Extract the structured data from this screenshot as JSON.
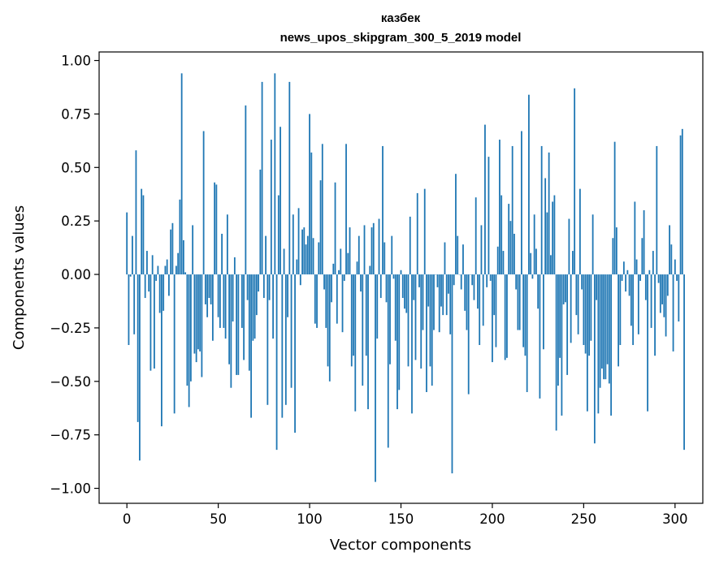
{
  "chart_data": {
    "type": "bar",
    "title": "казбек",
    "subtitle": "news_upos_skipgram_300_5_2019 model",
    "xlabel": "Vector components",
    "ylabel": "Components values",
    "xlim": [
      -15.2,
      315.2
    ],
    "ylim": [
      -1.07,
      1.04
    ],
    "xticks": [
      0,
      50,
      100,
      150,
      200,
      250,
      300
    ],
    "xtick_labels": [
      "0",
      "50",
      "100",
      "150",
      "200",
      "250",
      "300"
    ],
    "yticks": [
      1.0,
      0.75,
      0.5,
      0.25,
      0.0,
      -0.25,
      -0.5,
      -0.75,
      -1.0
    ],
    "ytick_labels": [
      "1.00",
      "0.75",
      "0.50",
      "0.25",
      "0.00",
      "−0.25",
      "−0.50",
      "−0.75",
      "−1.00"
    ],
    "grid": false,
    "bar_color": "#1f77b4",
    "values": [
      0.29,
      -0.33,
      -0.01,
      0.18,
      -0.28,
      0.58,
      -0.69,
      -0.87,
      0.4,
      0.37,
      -0.11,
      0.11,
      -0.08,
      -0.45,
      0.09,
      -0.44,
      -0.03,
      0.04,
      -0.18,
      -0.71,
      -0.17,
      0.04,
      0.07,
      -0.1,
      0.21,
      0.24,
      -0.65,
      0.04,
      0.1,
      0.35,
      0.94,
      0.16,
      0.01,
      -0.52,
      -0.62,
      -0.5,
      0.23,
      -0.37,
      -0.41,
      -0.35,
      -0.36,
      -0.48,
      0.67,
      -0.14,
      -0.2,
      -0.11,
      -0.14,
      -0.31,
      0.43,
      0.42,
      -0.2,
      -0.25,
      0.19,
      -0.25,
      -0.3,
      0.28,
      -0.42,
      -0.53,
      -0.22,
      0.08,
      -0.47,
      -0.47,
      0.0,
      -0.25,
      -0.4,
      0.79,
      -0.12,
      -0.45,
      -0.67,
      -0.31,
      -0.3,
      -0.19,
      -0.08,
      0.49,
      0.9,
      -0.11,
      0.18,
      -0.61,
      -0.12,
      0.63,
      -0.3,
      0.94,
      -0.82,
      0.37,
      0.69,
      -0.67,
      0.12,
      -0.61,
      -0.2,
      0.9,
      -0.53,
      0.28,
      -0.74,
      0.07,
      0.31,
      -0.05,
      0.21,
      0.22,
      0.14,
      0.18,
      0.75,
      0.57,
      0.17,
      -0.23,
      -0.25,
      0.15,
      0.44,
      0.61,
      -0.07,
      -0.25,
      -0.43,
      -0.5,
      -0.13,
      0.05,
      0.43,
      -0.23,
      0.02,
      0.12,
      -0.27,
      -0.03,
      0.61,
      0.1,
      0.22,
      -0.43,
      -0.38,
      -0.64,
      0.06,
      0.18,
      -0.08,
      -0.52,
      0.23,
      -0.38,
      -0.63,
      0.04,
      0.22,
      0.24,
      -0.97,
      -0.3,
      0.26,
      -0.11,
      0.6,
      0.15,
      -0.13,
      -0.81,
      -0.42,
      0.18,
      -0.02,
      -0.31,
      -0.63,
      -0.54,
      0.02,
      -0.11,
      -0.16,
      -0.18,
      -0.43,
      0.27,
      -0.65,
      -0.12,
      -0.4,
      0.38,
      -0.06,
      -0.44,
      -0.26,
      0.4,
      -0.55,
      -0.15,
      -0.43,
      -0.52,
      -0.26,
      0.0,
      -0.06,
      -0.27,
      -0.15,
      -0.19,
      0.15,
      -0.19,
      -0.09,
      -0.28,
      -0.93,
      -0.05,
      0.47,
      0.18,
      0.0,
      -0.07,
      0.14,
      -0.17,
      -0.26,
      -0.56,
      0.0,
      -0.05,
      -0.12,
      0.36,
      -0.16,
      -0.33,
      0.23,
      -0.24,
      0.7,
      -0.06,
      0.55,
      -0.03,
      -0.41,
      -0.19,
      -0.34,
      0.13,
      0.63,
      0.37,
      0.11,
      -0.4,
      -0.39,
      0.33,
      0.25,
      0.6,
      0.19,
      -0.07,
      -0.26,
      -0.26,
      0.67,
      -0.34,
      -0.38,
      -0.55,
      0.84,
      0.1,
      -0.02,
      0.28,
      0.12,
      -0.16,
      -0.58,
      0.6,
      -0.35,
      0.45,
      0.29,
      0.57,
      0.09,
      0.34,
      0.37,
      -0.73,
      -0.52,
      -0.39,
      -0.66,
      -0.14,
      -0.13,
      -0.47,
      0.26,
      -0.32,
      0.11,
      0.87,
      -0.19,
      -0.28,
      0.4,
      -0.07,
      -0.33,
      -0.37,
      -0.64,
      -0.38,
      -0.31,
      0.28,
      -0.79,
      -0.12,
      -0.65,
      -0.53,
      -0.44,
      -0.49,
      -0.49,
      -0.42,
      -0.51,
      -0.66,
      0.17,
      0.62,
      0.22,
      -0.43,
      -0.33,
      -0.03,
      0.06,
      -0.08,
      0.02,
      -0.1,
      -0.24,
      -0.33,
      0.34,
      0.07,
      -0.28,
      -0.03,
      0.17,
      0.3,
      -0.12,
      -0.64,
      0.02,
      -0.25,
      0.11,
      -0.38,
      0.6,
      -0.04,
      -0.18,
      -0.14,
      -0.2,
      -0.29,
      -0.1,
      0.23,
      0.14,
      -0.36,
      0.07,
      -0.03,
      -0.22,
      0.65,
      0.68,
      -0.82
    ]
  }
}
